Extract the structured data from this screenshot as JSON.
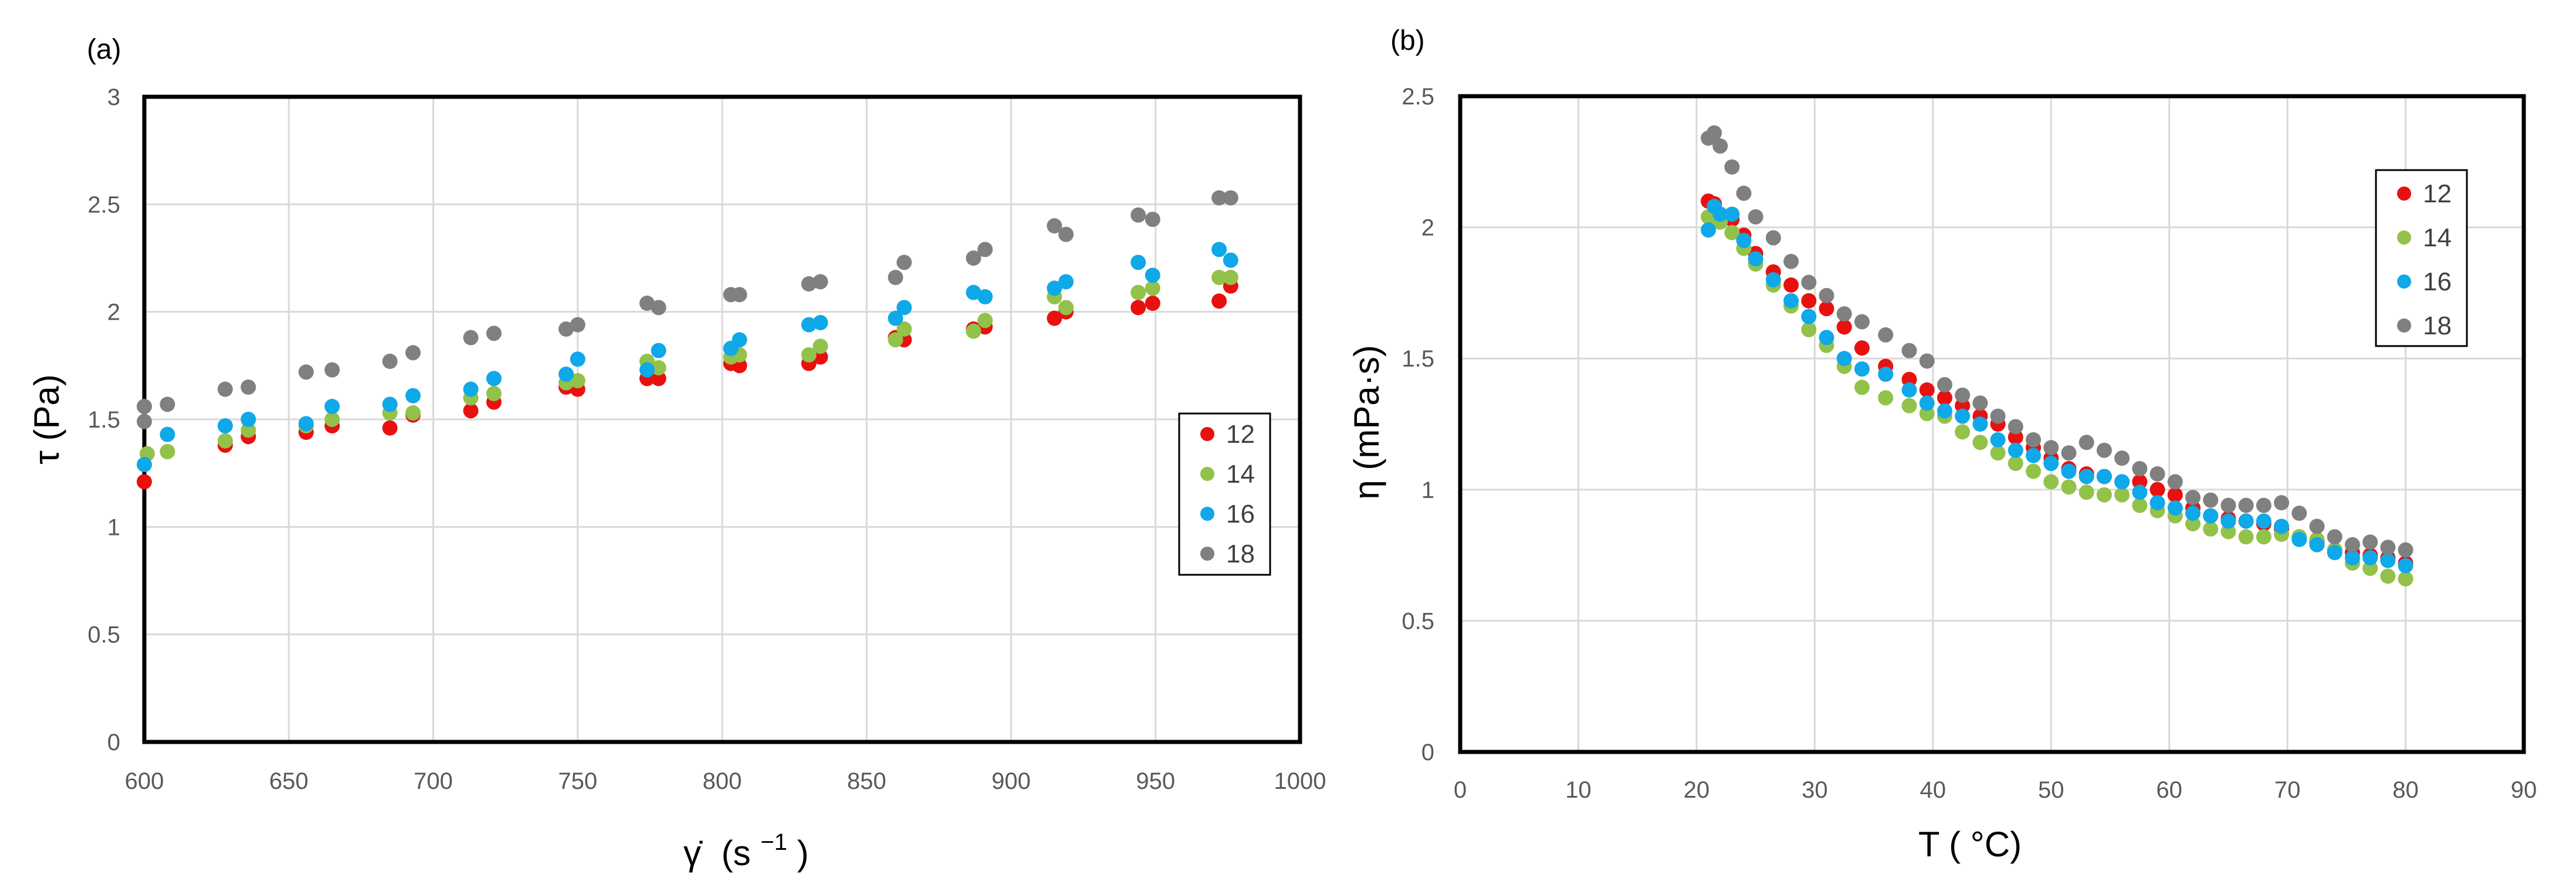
{
  "chart_data": [
    {
      "type": "scatter",
      "panel_label": "(a)",
      "title": "",
      "xlabel_symbol": "γ̇",
      "xlabel_unit": "(s",
      "xlabel_exp": "−1",
      "xlabel_close": ")",
      "ylabel": "τ (Pa)",
      "xlim": [
        600,
        1000
      ],
      "ylim": [
        0,
        3
      ],
      "x_ticks": [
        "600",
        "650",
        "700",
        "750",
        "800",
        "850",
        "900",
        "950",
        "1000"
      ],
      "y_ticks": [
        "0",
        "0.5",
        "1",
        "1.5",
        "2",
        "2.5",
        "3"
      ],
      "legend": "right",
      "series": [
        {
          "name": "12",
          "color": "#e8110f",
          "x": [
            600,
            628,
            636,
            656,
            665,
            685,
            693,
            713,
            721,
            746,
            750,
            774,
            778,
            803,
            806,
            830,
            834,
            860,
            863,
            887,
            891,
            915,
            919,
            944,
            949,
            972,
            976
          ],
          "y": [
            1.21,
            1.38,
            1.42,
            1.44,
            1.47,
            1.46,
            1.52,
            1.54,
            1.58,
            1.65,
            1.64,
            1.69,
            1.69,
            1.76,
            1.75,
            1.76,
            1.79,
            1.88,
            1.87,
            1.92,
            1.93,
            1.97,
            2.0,
            2.02,
            2.04,
            2.05,
            2.12
          ]
        },
        {
          "name": "14",
          "color": "#92c24a",
          "x": [
            601,
            608,
            628,
            636,
            656,
            665,
            685,
            693,
            713,
            721,
            746,
            750,
            774,
            778,
            803,
            806,
            830,
            834,
            860,
            863,
            887,
            891,
            915,
            919,
            944,
            949,
            972,
            976
          ],
          "y": [
            1.34,
            1.35,
            1.4,
            1.45,
            1.47,
            1.5,
            1.53,
            1.53,
            1.6,
            1.62,
            1.67,
            1.68,
            1.77,
            1.74,
            1.79,
            1.8,
            1.8,
            1.84,
            1.87,
            1.92,
            1.91,
            1.96,
            2.07,
            2.02,
            2.09,
            2.11,
            2.16,
            2.16
          ]
        },
        {
          "name": "16",
          "color": "#0fa8e8",
          "x": [
            600,
            608,
            628,
            636,
            656,
            665,
            685,
            693,
            713,
            721,
            746,
            750,
            774,
            778,
            803,
            806,
            830,
            834,
            860,
            863,
            887,
            891,
            915,
            919,
            944,
            949,
            972,
            976
          ],
          "y": [
            1.29,
            1.43,
            1.47,
            1.5,
            1.48,
            1.56,
            1.57,
            1.61,
            1.64,
            1.69,
            1.71,
            1.78,
            1.73,
            1.82,
            1.83,
            1.87,
            1.94,
            1.95,
            1.97,
            2.02,
            2.09,
            2.07,
            2.11,
            2.14,
            2.23,
            2.17,
            2.29,
            2.24
          ]
        },
        {
          "name": "18",
          "color": "#808080",
          "x": [
            600,
            600,
            608,
            628,
            636,
            656,
            665,
            685,
            693,
            713,
            721,
            746,
            750,
            774,
            778,
            803,
            806,
            830,
            834,
            860,
            863,
            887,
            891,
            915,
            919,
            944,
            949,
            972,
            976
          ],
          "y": [
            1.56,
            1.49,
            1.57,
            1.64,
            1.65,
            1.72,
            1.73,
            1.77,
            1.81,
            1.88,
            1.9,
            1.92,
            1.94,
            2.04,
            2.02,
            2.08,
            2.08,
            2.13,
            2.14,
            2.16,
            2.23,
            2.25,
            2.29,
            2.4,
            2.36,
            2.45,
            2.43,
            2.53,
            2.53
          ]
        }
      ]
    },
    {
      "type": "scatter",
      "panel_label": "(b)",
      "title": "",
      "xlabel": "T ( °C)",
      "ylabel": "η (mPa·s)",
      "xlim": [
        0,
        90
      ],
      "ylim": [
        0,
        2.5
      ],
      "x_ticks": [
        "0",
        "10",
        "20",
        "30",
        "40",
        "50",
        "60",
        "70",
        "80",
        "90"
      ],
      "y_ticks": [
        "0",
        "0.5",
        "1",
        "1.5",
        "2",
        "2.5"
      ],
      "legend": "top-right",
      "series": [
        {
          "name": "12",
          "color": "#e8110f",
          "x": [
            21,
            21.5,
            22,
            23,
            24,
            25,
            26.5,
            28,
            29.5,
            31,
            32.5,
            34,
            36,
            38,
            39.5,
            41,
            42.5,
            44,
            45.5,
            47,
            48.5,
            50,
            51.5,
            53,
            54.5,
            56,
            57.5,
            59,
            60.5,
            62,
            63.5,
            65,
            66.5,
            68,
            69.5,
            71,
            72.5,
            74,
            75.5,
            77,
            78.5,
            80
          ],
          "y": [
            2.1,
            2.09,
            2.05,
            2.03,
            1.97,
            1.9,
            1.83,
            1.78,
            1.72,
            1.69,
            1.62,
            1.54,
            1.47,
            1.42,
            1.38,
            1.35,
            1.32,
            1.28,
            1.25,
            1.2,
            1.16,
            1.12,
            1.08,
            1.06,
            1.05,
            1.03,
            1.03,
            1.0,
            0.98,
            0.93,
            0.9,
            0.89,
            0.88,
            0.87,
            0.85,
            0.82,
            0.8,
            0.77,
            0.76,
            0.75,
            0.74,
            0.72
          ]
        },
        {
          "name": "14",
          "color": "#92c24a",
          "x": [
            21,
            21.5,
            22,
            23,
            24,
            25,
            26.5,
            28,
            29.5,
            31,
            32.5,
            34,
            36,
            38,
            39.5,
            41,
            42.5,
            44,
            45.5,
            47,
            48.5,
            50,
            51.5,
            53,
            54.5,
            56,
            57.5,
            59,
            60.5,
            62,
            63.5,
            65,
            66.5,
            68,
            69.5,
            71,
            72.5,
            74,
            75.5,
            77,
            78.5,
            80
          ],
          "y": [
            2.04,
            2.04,
            2.02,
            1.98,
            1.92,
            1.86,
            1.78,
            1.7,
            1.61,
            1.55,
            1.47,
            1.39,
            1.35,
            1.32,
            1.29,
            1.28,
            1.22,
            1.18,
            1.14,
            1.1,
            1.07,
            1.03,
            1.01,
            0.99,
            0.98,
            0.98,
            0.94,
            0.92,
            0.9,
            0.87,
            0.85,
            0.84,
            0.82,
            0.82,
            0.83,
            0.82,
            0.81,
            0.77,
            0.72,
            0.7,
            0.67,
            0.66
          ]
        },
        {
          "name": "16",
          "color": "#0fa8e8",
          "x": [
            21,
            21.5,
            22,
            23,
            24,
            25,
            26.5,
            28,
            29.5,
            31,
            32.5,
            34,
            36,
            38,
            39.5,
            41,
            42.5,
            44,
            45.5,
            47,
            48.5,
            50,
            51.5,
            53,
            54.5,
            56,
            57.5,
            59,
            60.5,
            62,
            63.5,
            65,
            66.5,
            68,
            69.5,
            71,
            72.5,
            74,
            75.5,
            77,
            78.5,
            80
          ],
          "y": [
            1.99,
            2.08,
            2.05,
            2.05,
            1.95,
            1.88,
            1.8,
            1.72,
            1.66,
            1.58,
            1.5,
            1.46,
            1.44,
            1.38,
            1.33,
            1.3,
            1.28,
            1.25,
            1.19,
            1.15,
            1.13,
            1.1,
            1.07,
            1.05,
            1.05,
            1.03,
            0.99,
            0.95,
            0.93,
            0.91,
            0.9,
            0.88,
            0.88,
            0.88,
            0.86,
            0.81,
            0.79,
            0.76,
            0.74,
            0.74,
            0.73,
            0.71
          ]
        },
        {
          "name": "18",
          "color": "#808080",
          "x": [
            21,
            21.5,
            22,
            23,
            24,
            25,
            26.5,
            28,
            29.5,
            31,
            32.5,
            34,
            36,
            38,
            39.5,
            41,
            42.5,
            44,
            45.5,
            47,
            48.5,
            50,
            51.5,
            53,
            54.5,
            56,
            57.5,
            59,
            60.5,
            62,
            63.5,
            65,
            66.5,
            68,
            69.5,
            71,
            72.5,
            74,
            75.5,
            77,
            78.5,
            80
          ],
          "y": [
            2.34,
            2.36,
            2.31,
            2.23,
            2.13,
            2.04,
            1.96,
            1.87,
            1.79,
            1.74,
            1.67,
            1.64,
            1.59,
            1.53,
            1.49,
            1.4,
            1.36,
            1.33,
            1.28,
            1.24,
            1.19,
            1.16,
            1.14,
            1.18,
            1.15,
            1.12,
            1.08,
            1.06,
            1.03,
            0.97,
            0.96,
            0.94,
            0.94,
            0.94,
            0.95,
            0.91,
            0.86,
            0.82,
            0.79,
            0.8,
            0.78,
            0.77
          ]
        }
      ]
    }
  ]
}
